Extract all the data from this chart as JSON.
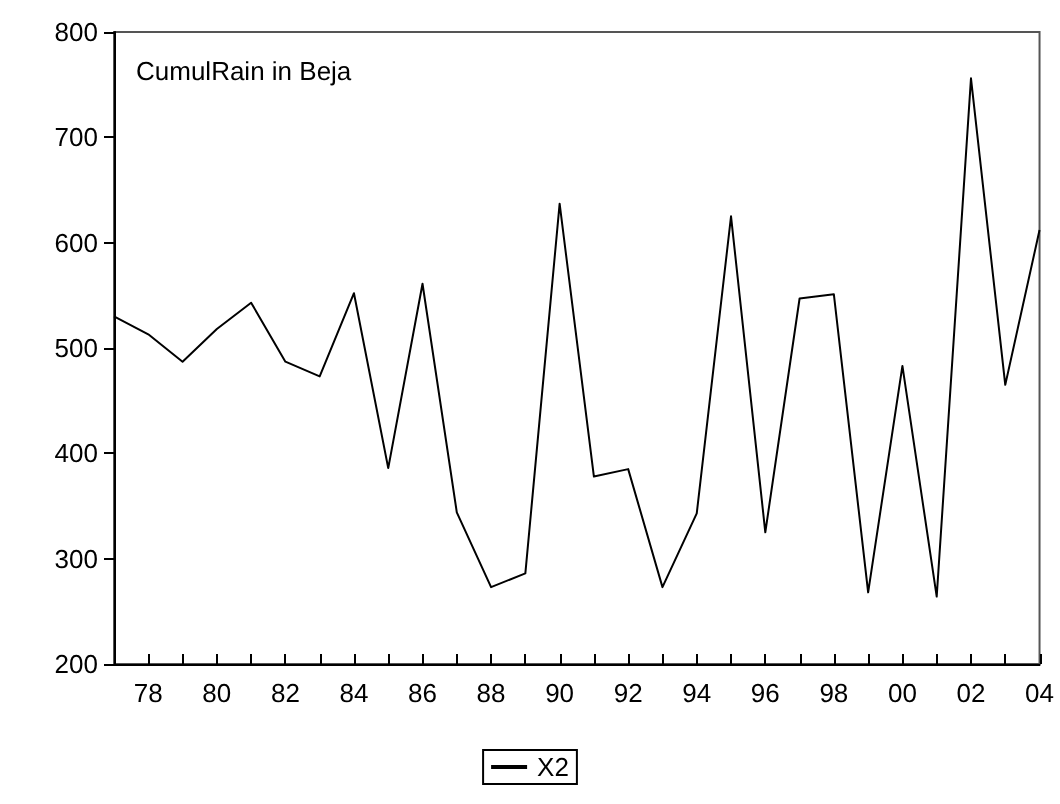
{
  "chart_data": {
    "type": "line",
    "title": "CumulRain in Beja",
    "categories": [
      null,
      "78",
      null,
      "80",
      null,
      "82",
      null,
      "84",
      null,
      "86",
      null,
      "88",
      null,
      "90",
      null,
      "92",
      null,
      "94",
      null,
      "96",
      null,
      "98",
      null,
      "00",
      null,
      "02",
      null,
      "04"
    ],
    "series": [
      {
        "name": "X2",
        "color": "#000000",
        "values": [
          530,
          513,
          487,
          518,
          543,
          487,
          473,
          552,
          386,
          561,
          344,
          273,
          286,
          637,
          378,
          385,
          273,
          343,
          625,
          325,
          547,
          551,
          268,
          483,
          264,
          756,
          465,
          612
        ]
      }
    ],
    "ylim": [
      200,
      800
    ],
    "yticks": [
      200,
      300,
      400,
      500,
      600,
      700,
      800
    ],
    "grid": false,
    "legend": "bottom",
    "marker": "none",
    "line_style": "solid"
  }
}
